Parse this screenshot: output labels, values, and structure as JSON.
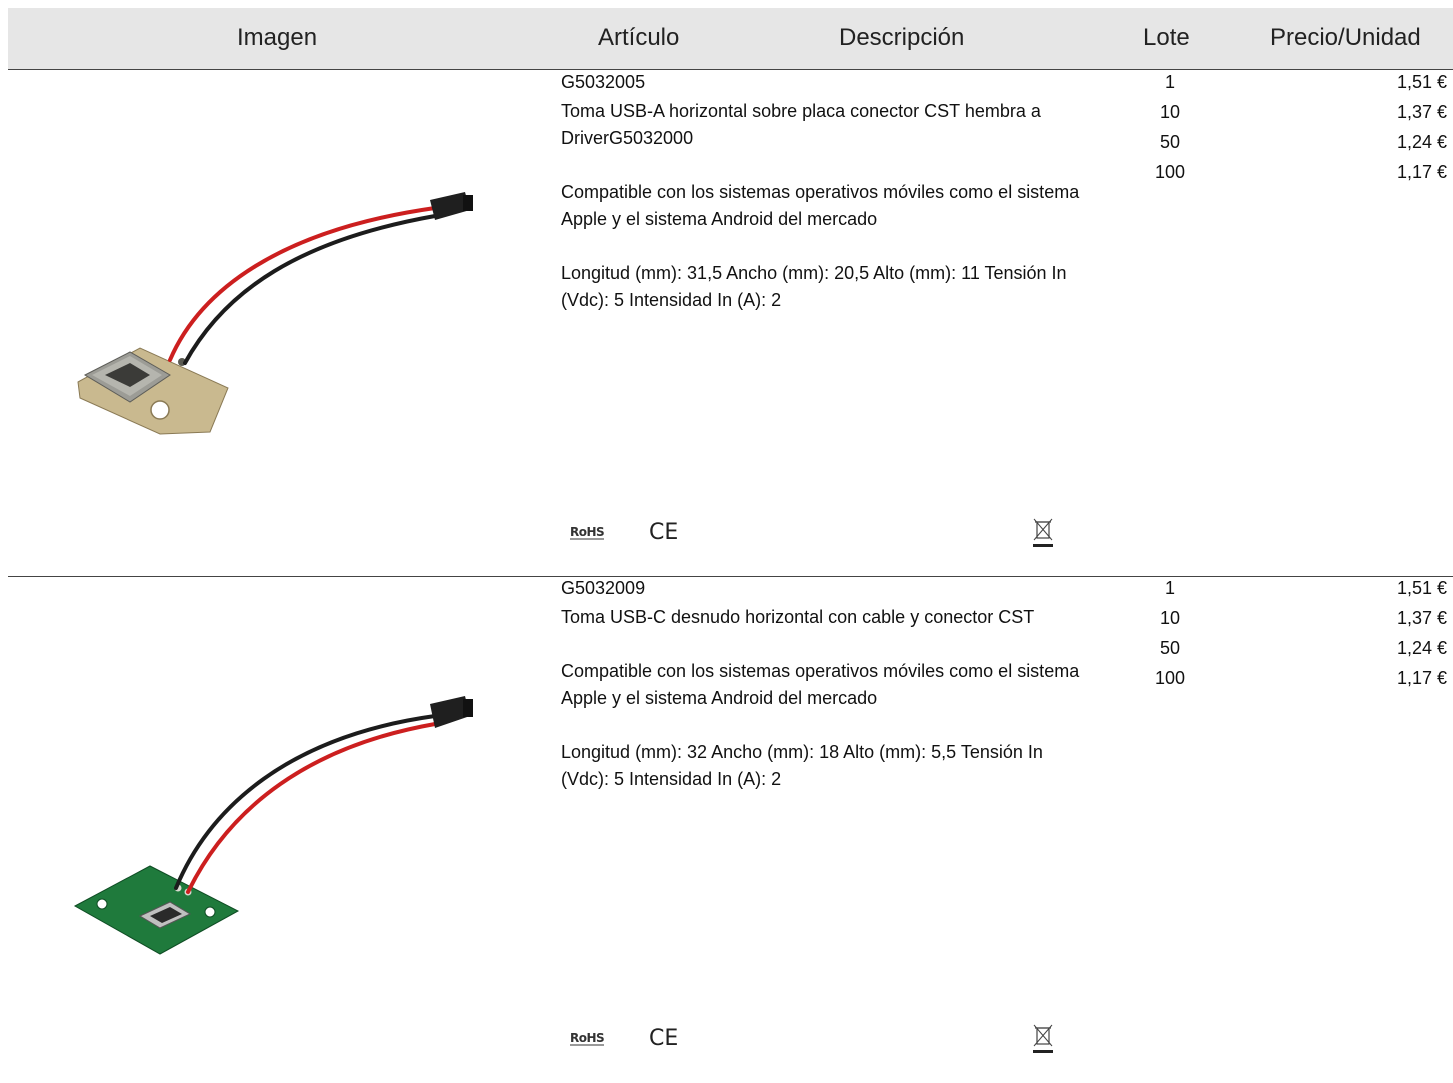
{
  "header": {
    "imagen": "Imagen",
    "articulo": "Artículo",
    "descripcion": "Descripción",
    "lote": "Lote",
    "precio": "Precio/Unidad"
  },
  "products": [
    {
      "code": "G5032005",
      "title": "Toma USB-A horizontal sobre placa conector CST hembra a DriverG5032000",
      "compat": "Compatible con los sistemas operativos móviles como el sistema Apple y el sistema Android del mercado",
      "dims": "Longitud (mm): 31,5 Ancho (mm): 20,5 Alto (mm): 11 Tensión In (Vdc): 5 Intensidad In (A): 2",
      "pricing": [
        {
          "lote": "1",
          "precio": "1,51 €"
        },
        {
          "lote": "10",
          "precio": "1,37 €"
        },
        {
          "lote": "50",
          "precio": "1,24 €"
        },
        {
          "lote": "100",
          "precio": "1,17 €"
        }
      ],
      "cert_rohs": "RoHS",
      "cert_ce": "CE",
      "board_color": "#c9b98f"
    },
    {
      "code": "G5032009",
      "title": "Toma USB-C desnudo horizontal con cable y conector CST",
      "compat": "Compatible con los sistemas operativos móviles como el sistema Apple y el sistema Android del mercado",
      "dims": "Longitud (mm): 32 Ancho (mm): 18 Alto (mm): 5,5 Tensión In (Vdc): 5 Intensidad In (A): 2",
      "pricing": [
        {
          "lote": "1",
          "precio": "1,51 €"
        },
        {
          "lote": "10",
          "precio": "1,37 €"
        },
        {
          "lote": "50",
          "precio": "1,24 €"
        },
        {
          "lote": "100",
          "precio": "1,17 €"
        }
      ],
      "cert_rohs": "RoHS",
      "cert_ce": "CE",
      "board_color": "#1f7a3c"
    }
  ]
}
